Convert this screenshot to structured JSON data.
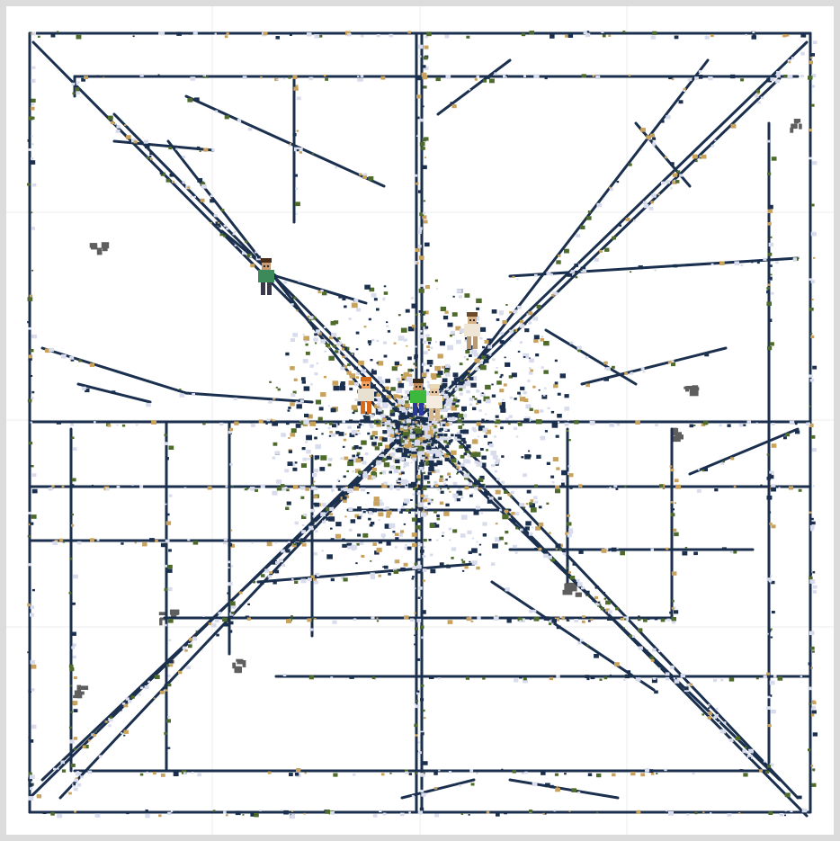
{
  "map": {
    "colors": {
      "background": "#ffffff",
      "frame": "#dcdcdc",
      "grid": "#eeeeee",
      "track_dark": "#1b2f4e",
      "track_light": "#d8dcec",
      "track_green": "#4e6b2c",
      "track_sand": "#c9a25c",
      "patch_gray": "#5e5e5e"
    },
    "legend": [],
    "players": [
      {
        "name": "",
        "icon": "player-head-icon",
        "skin": "green-shirt"
      },
      {
        "name": "",
        "icon": "player-head-icon",
        "skin": "tan-robe"
      },
      {
        "name": "",
        "icon": "player-head-icon",
        "skin": "fox-orange"
      },
      {
        "name": "",
        "icon": "player-head-icon",
        "skin": "steve-green"
      },
      {
        "name": "",
        "icon": "player-head-icon",
        "skin": "tan-light"
      }
    ]
  }
}
